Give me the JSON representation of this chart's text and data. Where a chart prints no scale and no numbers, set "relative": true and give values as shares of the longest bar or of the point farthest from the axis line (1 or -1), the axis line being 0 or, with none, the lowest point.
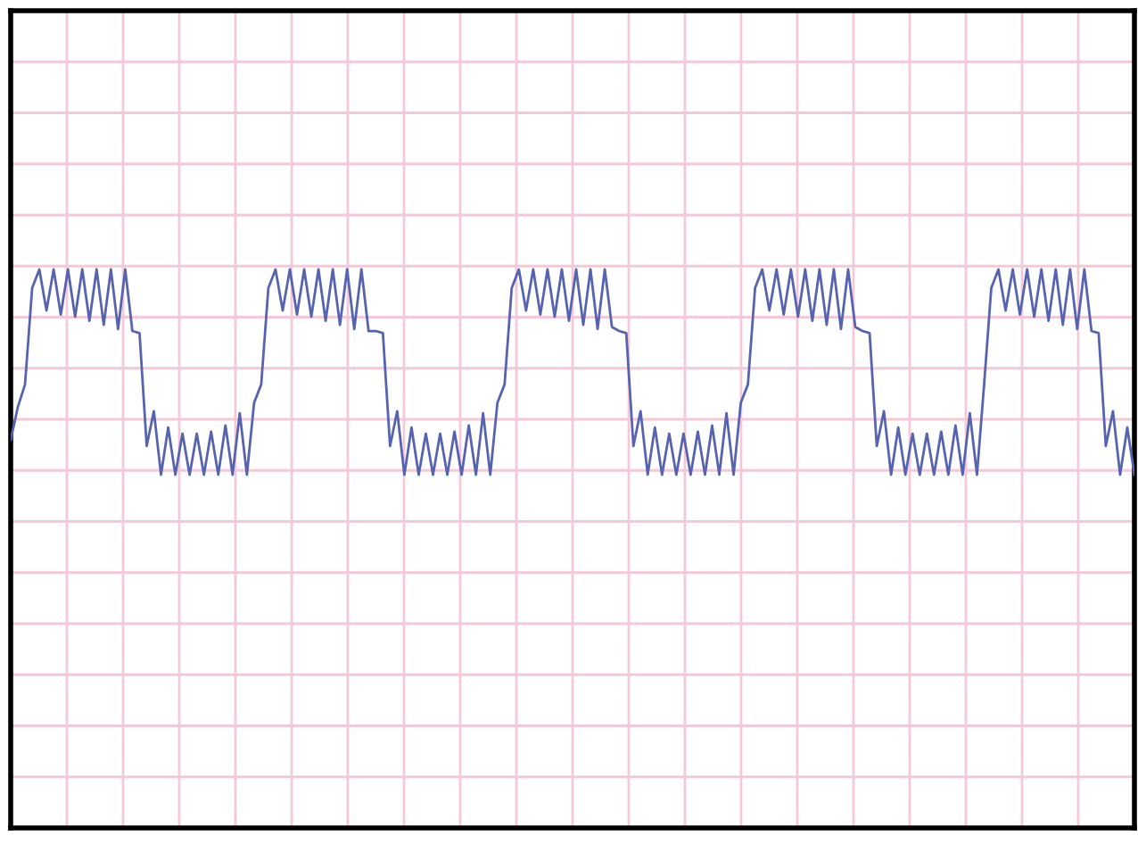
{
  "chart_data": {
    "type": "line",
    "relative": true,
    "grid": true,
    "marker": "none",
    "line_style": "solid",
    "categories": [
      null,
      null,
      null,
      null,
      null,
      null,
      null,
      null,
      null,
      null,
      null,
      null,
      null,
      null,
      null,
      null,
      null,
      null,
      null,
      null,
      null,
      null,
      null,
      null,
      null,
      null,
      null,
      null,
      null,
      null,
      null,
      null,
      null,
      null,
      null,
      null,
      null,
      null,
      null,
      null,
      null,
      null,
      null,
      null,
      null,
      null,
      null,
      null,
      null,
      null,
      null,
      null,
      null,
      null,
      null,
      null,
      null,
      null,
      null,
      null,
      null,
      null,
      null,
      null,
      null,
      null,
      null,
      null,
      null,
      null,
      null,
      null,
      null,
      null,
      null,
      null,
      null,
      null,
      null,
      null,
      null,
      null,
      null,
      null,
      null,
      null,
      null,
      null,
      null,
      null,
      null,
      null,
      null,
      null,
      null,
      null,
      null,
      null,
      null,
      null,
      null,
      null,
      null,
      null,
      null,
      null,
      null,
      null,
      null,
      null,
      null,
      null,
      null,
      null,
      null,
      null,
      null,
      null,
      null,
      null,
      null,
      null,
      null,
      null,
      null,
      null,
      null,
      null,
      null,
      null,
      null,
      null,
      null,
      null,
      null,
      null,
      null,
      null,
      null,
      null,
      null,
      null,
      null,
      null,
      null,
      null,
      null,
      null,
      null,
      null,
      null,
      null,
      null,
      null,
      null,
      null,
      null,
      null
    ],
    "series": [
      {
        "color": "#5563b0",
        "values": [
          0.17,
          0.33,
          0.44,
          0.91,
          1,
          0.8,
          1,
          0.78,
          1,
          0.77,
          1,
          0.75,
          1,
          0.73,
          1,
          0.71,
          1,
          0.7,
          0.69,
          0.14,
          0.31,
          0,
          0.23,
          0,
          0.2,
          0,
          0.2,
          0,
          0.21,
          0,
          0.24,
          0,
          0.3,
          0,
          0.35,
          0.44,
          0.91,
          1,
          0.8,
          1,
          0.78,
          1,
          0.77,
          1,
          0.75,
          1,
          0.73,
          1,
          0.71,
          1,
          0.7,
          0.7,
          0.69,
          0.14,
          0.31,
          0,
          0.23,
          0,
          0.2,
          0,
          0.2,
          0,
          0.21,
          0,
          0.24,
          0,
          0.3,
          0,
          0.35,
          0.44,
          0.91,
          1,
          0.8,
          1,
          0.78,
          1,
          0.77,
          1,
          0.75,
          1,
          0.73,
          1,
          0.71,
          1,
          0.72,
          0.7,
          0.69,
          0.14,
          0.31,
          0,
          0.23,
          0,
          0.2,
          0,
          0.2,
          0,
          0.21,
          0,
          0.24,
          0,
          0.3,
          0,
          0.35,
          0.44,
          0.91,
          1,
          0.8,
          1,
          0.78,
          1,
          0.77,
          1,
          0.75,
          1,
          0.73,
          1,
          0.71,
          1,
          0.72,
          0.7,
          0.69,
          0.14,
          0.31,
          0,
          0.23,
          0,
          0.2,
          0,
          0.2,
          0,
          0.21,
          0,
          0.24,
          0,
          0.3,
          0,
          0.44,
          0.91,
          1,
          0.8,
          1,
          0.78,
          1,
          0.77,
          1,
          0.75,
          1,
          0.73,
          1,
          0.71,
          1,
          0.7,
          0.69,
          0.14,
          0.31,
          0,
          0.23,
          0
        ]
      }
    ]
  }
}
